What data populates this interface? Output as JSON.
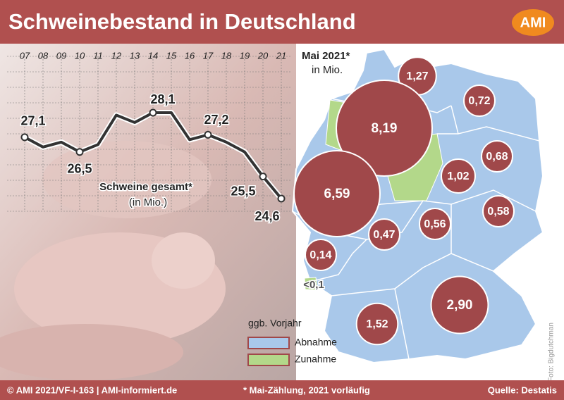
{
  "title": "Schweinebestand in Deutschland",
  "logo": "AMI",
  "chart_data": {
    "type": "line",
    "categories": [
      "07",
      "08",
      "09",
      "10",
      "11",
      "12",
      "13",
      "14",
      "15",
      "16",
      "17",
      "18",
      "19",
      "20",
      "21"
    ],
    "series": [
      {
        "name": "Schweine gesamt*",
        "color": "#333333",
        "values": [
          27.1,
          26.7,
          26.9,
          26.5,
          26.8,
          28.0,
          27.7,
          28.1,
          28.1,
          27.0,
          27.2,
          26.9,
          26.5,
          25.5,
          24.6
        ],
        "value_labels": [
          "27,1",
          null,
          null,
          "26,5",
          null,
          null,
          null,
          "28,1",
          null,
          null,
          "27,2",
          null,
          null,
          "25,5",
          "24,6"
        ]
      }
    ],
    "unit_label": "(in Mio.)",
    "grid": true
  },
  "map": {
    "title": "Mai 2021*",
    "subtitle": "in Mio.",
    "bubbles": [
      {
        "label": "1,27",
        "value": 1.27
      },
      {
        "label": "0,72",
        "value": 0.72
      },
      {
        "label": "8,19",
        "value": 8.19
      },
      {
        "label": "0,68",
        "value": 0.68
      },
      {
        "label": "1,02",
        "value": 1.02
      },
      {
        "label": "6,59",
        "value": 6.59
      },
      {
        "label": "0,58",
        "value": 0.58
      },
      {
        "label": "0,56",
        "value": 0.56
      },
      {
        "label": "0,47",
        "value": 0.47
      },
      {
        "label": "0,14",
        "value": 0.14
      },
      {
        "label": "<0,1",
        "value": 0.1
      },
      {
        "label": "2,90",
        "value": 2.9
      },
      {
        "label": "1,52",
        "value": 1.52
      }
    ],
    "color": "#a0484a",
    "legend": {
      "title": "ggb. Vorjahr",
      "items": [
        {
          "name": "Abnahme",
          "color": "#a9c8ea"
        },
        {
          "name": "Zunahme",
          "color": "#b3d88a"
        }
      ]
    }
  },
  "footer": {
    "left": "© AMI 2021/VF-I-163 | AMI-informiert.de",
    "center": "* Mai-Zählung, 2021 vorläufig",
    "right": "Quelle: Destatis"
  },
  "photo_credit": "Foto: Bigdutchman"
}
